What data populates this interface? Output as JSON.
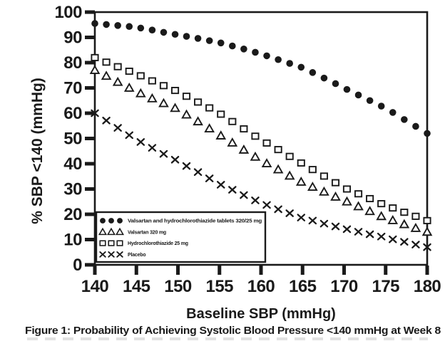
{
  "figure": {
    "caption": "Figure 1: Probability of Achieving Systolic Blood Pressure <140 mmHg at Week 8"
  },
  "chart_data": {
    "type": "scatter",
    "title": "Figure 1: Probability of Achieving Systolic Blood Pressure <140 mmHg at Week 8",
    "xlabel": "Baseline SBP (mmHg)",
    "ylabel": "% SBP <140 (mmHg)",
    "xlim": [
      140,
      180
    ],
    "ylim": [
      0,
      100
    ],
    "x_ticks": [
      140,
      145,
      150,
      155,
      160,
      165,
      170,
      175,
      180
    ],
    "y_ticks": [
      0,
      10,
      20,
      30,
      40,
      50,
      60,
      70,
      80,
      90,
      100
    ],
    "grid": false,
    "legend_position": "inside-lower-left",
    "colors": {
      "ink": "#1a1a1a",
      "background": "#ffffff"
    },
    "x": [
      140,
      141.38,
      142.76,
      144.14,
      145.52,
      146.9,
      148.28,
      149.66,
      151.03,
      152.41,
      153.79,
      155.17,
      156.55,
      157.93,
      159.31,
      160.69,
      162.07,
      163.45,
      164.83,
      166.21,
      167.59,
      168.97,
      170.34,
      171.72,
      173.1,
      174.48,
      175.86,
      177.24,
      178.62,
      180
    ],
    "series": [
      {
        "name": "Valsartan and hydrochlorothiazide tablets 320/25 mg",
        "marker": "filled-circle",
        "values": [
          95.5,
          95.1,
          94.7,
          94.3,
          93.7,
          92.9,
          92.0,
          91.2,
          90.4,
          89.6,
          88.7,
          87.8,
          86.6,
          85.4,
          84.1,
          82.7,
          81.2,
          79.7,
          78.2,
          76.1,
          73.9,
          71.7,
          69.4,
          67.2,
          65.0,
          62.8,
          60.3,
          57.5,
          54.8,
          52.0
        ]
      },
      {
        "name": "Valsartan 320 mg",
        "marker": "open-triangle",
        "values": [
          77.0,
          74.7,
          72.3,
          70.0,
          67.8,
          65.8,
          63.9,
          62.0,
          59.4,
          56.7,
          53.9,
          51.1,
          48.3,
          45.5,
          42.7,
          40.1,
          37.7,
          35.2,
          32.8,
          30.8,
          28.9,
          26.9,
          25.0,
          23.1,
          21.2,
          19.2,
          17.6,
          16.0,
          14.5,
          13.0
        ]
      },
      {
        "name": "Hydrochlorothiazide 25 mg",
        "marker": "open-square",
        "values": [
          82.0,
          80.2,
          78.4,
          76.6,
          74.8,
          72.8,
          70.9,
          69.0,
          66.7,
          64.4,
          62.1,
          59.6,
          56.7,
          53.8,
          50.9,
          48.2,
          45.6,
          42.9,
          40.3,
          37.7,
          35.1,
          32.5,
          30.0,
          28.1,
          26.2,
          24.2,
          22.5,
          20.8,
          19.2,
          17.5
        ]
      },
      {
        "name": "Placebo",
        "marker": "x-cross",
        "values": [
          60.0,
          57.1,
          54.2,
          51.3,
          48.6,
          46.3,
          43.9,
          41.6,
          39.1,
          36.7,
          34.2,
          31.7,
          29.7,
          27.6,
          25.5,
          23.7,
          22.0,
          20.4,
          18.7,
          17.5,
          16.3,
          15.2,
          14.1,
          13.1,
          12.1,
          11.2,
          10.1,
          9.1,
          8.0,
          7.0
        ]
      }
    ]
  }
}
